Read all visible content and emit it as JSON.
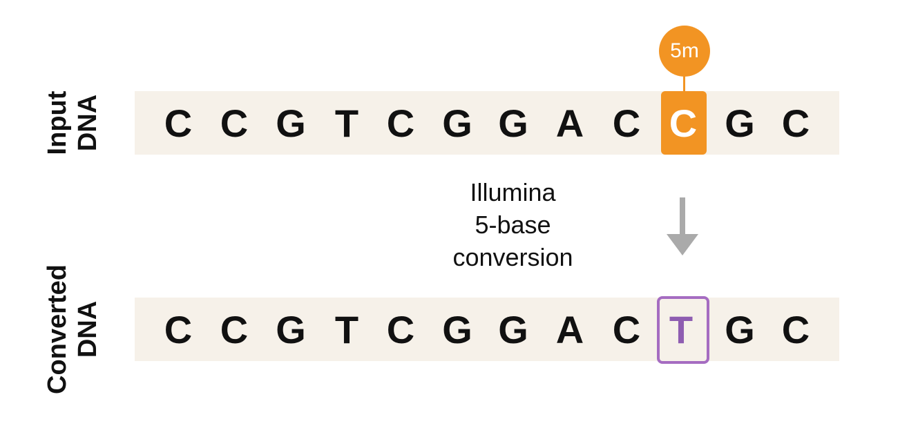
{
  "labels": {
    "input_line1": "Input",
    "input_line2": "DNA",
    "converted_line1": "Converted",
    "converted_line2": "DNA"
  },
  "input_sequence": [
    "C",
    "C",
    "G",
    "T",
    "C",
    "G",
    "G",
    "A",
    "C",
    "C",
    "G",
    "C"
  ],
  "converted_sequence": [
    "C",
    "C",
    "G",
    "T",
    "C",
    "G",
    "G",
    "A",
    "C",
    "T",
    "G",
    "C"
  ],
  "modification_badge": "5m",
  "conversion": {
    "line1": "Illumina",
    "line2": "5-base",
    "line3": "conversion"
  },
  "colors": {
    "strip_background": "#f6f1e9",
    "methyl_highlight": "#f29423",
    "converted_highlight": "#a56cc1",
    "arrow": "#aaaaaa"
  }
}
